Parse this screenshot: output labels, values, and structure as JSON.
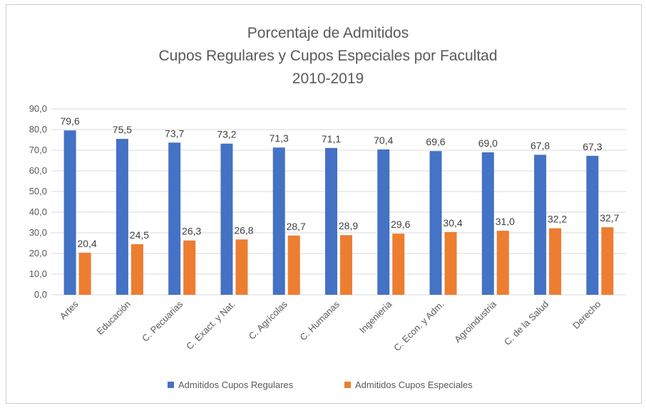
{
  "chart_data": {
    "type": "bar",
    "title": [
      "Porcentaje de Admitidos",
      "Cupos Regulares y Cupos Especiales por Facultad",
      "2010-2019"
    ],
    "categories": [
      "Artes",
      "Educación",
      "C. Pecuarias",
      "C. Exact. y Nat.",
      "C. Agrícolas",
      "C. Humanas",
      "Ingeniería",
      "C. Econ. y Adm.",
      "Agroindustria",
      "C. de la Salud",
      "Derecho"
    ],
    "series": [
      {
        "name": "Admitidos Cupos Regulares",
        "color": "#4472C4",
        "values": [
          79.6,
          75.5,
          73.7,
          73.2,
          71.3,
          71.1,
          70.4,
          69.6,
          69.0,
          67.8,
          67.3
        ],
        "labels": [
          "79,6",
          "75,5",
          "73,7",
          "73,2",
          "71,3",
          "71,1",
          "70,4",
          "69,6",
          "69,0",
          "67,8",
          "67,3"
        ]
      },
      {
        "name": "Admitidos Cupos Especiales",
        "color": "#ED7D31",
        "values": [
          20.4,
          24.5,
          26.3,
          26.8,
          28.7,
          28.9,
          29.6,
          30.4,
          31.0,
          32.2,
          32.7
        ],
        "labels": [
          "20,4",
          "24,5",
          "26,3",
          "26,8",
          "28,7",
          "28,9",
          "29,6",
          "30,4",
          "31,0",
          "32,2",
          "32,7"
        ]
      }
    ],
    "ylim": [
      0,
      90
    ],
    "yticks": [
      0,
      10,
      20,
      30,
      40,
      50,
      60,
      70,
      80,
      90
    ],
    "ytick_labels": [
      "0,0",
      "10,0",
      "20,0",
      "30,0",
      "40,0",
      "50,0",
      "60,0",
      "70,0",
      "80,0",
      "90,0"
    ],
    "grid": true,
    "legend_position": "bottom"
  }
}
